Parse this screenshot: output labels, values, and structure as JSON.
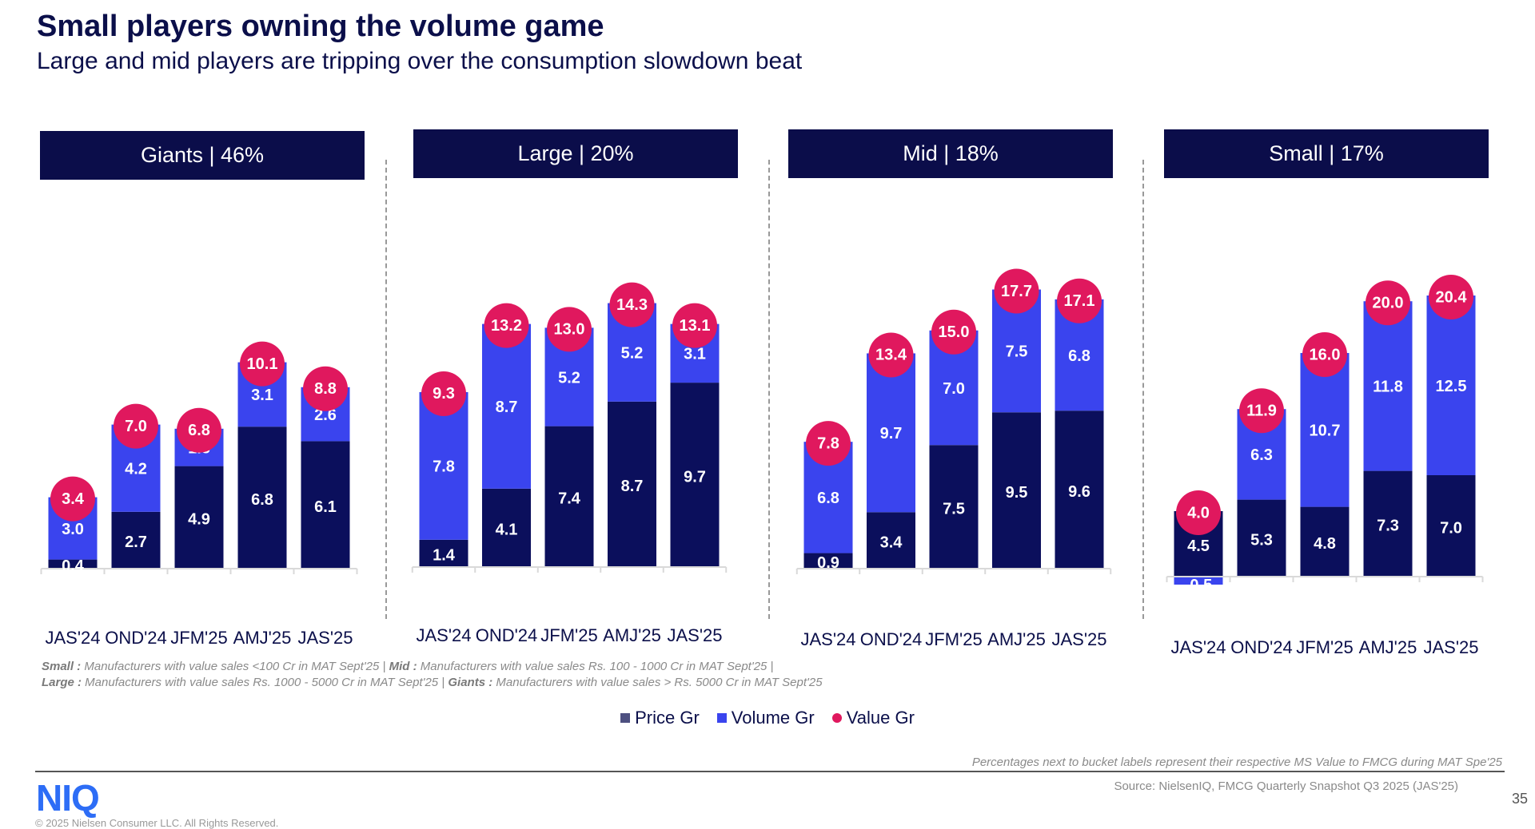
{
  "title": "Small players owning the volume game",
  "subtitle": "Large and mid players are tripping over the consumption slowdown beat",
  "colors": {
    "price": "#0b0f5c",
    "volume": "#3a44ee",
    "value": "#e0185e",
    "header": "#0b0d4a"
  },
  "chart_data": [
    {
      "type": "bar",
      "stacked": true,
      "title": "Giants | 46%",
      "categories": [
        "JAS'24",
        "OND'24",
        "JFM'25",
        "AMJ'25",
        "JAS'25"
      ],
      "series": [
        {
          "name": "Price Gr",
          "values": [
            0.4,
            2.7,
            4.9,
            6.8,
            6.1
          ]
        },
        {
          "name": "Volume Gr",
          "values": [
            3.0,
            4.2,
            1.8,
            3.1,
            2.6
          ]
        },
        {
          "name": "Value Gr",
          "values": [
            3.4,
            7.0,
            6.8,
            10.1,
            8.8
          ]
        }
      ]
    },
    {
      "type": "bar",
      "stacked": true,
      "title": "Large | 20%",
      "categories": [
        "JAS'24",
        "OND'24",
        "JFM'25",
        "AMJ'25",
        "JAS'25"
      ],
      "series": [
        {
          "name": "Price Gr",
          "values": [
            1.4,
            4.1,
            7.4,
            8.7,
            9.7
          ]
        },
        {
          "name": "Volume Gr",
          "values": [
            7.8,
            8.7,
            5.2,
            5.2,
            3.1
          ]
        },
        {
          "name": "Value Gr",
          "values": [
            9.3,
            13.2,
            13.0,
            14.3,
            13.1
          ]
        }
      ]
    },
    {
      "type": "bar",
      "stacked": true,
      "title": "Mid | 18%",
      "categories": [
        "JAS'24",
        "OND'24",
        "JFM'25",
        "AMJ'25",
        "JAS'25"
      ],
      "series": [
        {
          "name": "Price Gr",
          "values": [
            0.9,
            3.4,
            7.5,
            9.5,
            9.6
          ]
        },
        {
          "name": "Volume Gr",
          "values": [
            6.8,
            9.7,
            7.0,
            7.5,
            6.8
          ]
        },
        {
          "name": "Value Gr",
          "values": [
            7.8,
            13.4,
            15.0,
            17.7,
            17.1
          ]
        }
      ]
    },
    {
      "type": "bar",
      "stacked": true,
      "title": "Small | 17%",
      "categories": [
        "JAS'24",
        "OND'24",
        "JFM'25",
        "AMJ'25",
        "JAS'25"
      ],
      "series": [
        {
          "name": "Price Gr",
          "values": [
            4.5,
            5.3,
            4.8,
            7.3,
            7.0
          ]
        },
        {
          "name": "Volume Gr",
          "values": [
            -0.5,
            6.3,
            10.7,
            11.8,
            12.5
          ]
        },
        {
          "name": "Value Gr",
          "values": [
            4.0,
            11.9,
            16.0,
            20.0,
            20.4
          ]
        }
      ]
    }
  ],
  "footnotes": {
    "line1": [
      {
        "bold": "Small :",
        "text": " Manufacturers with value sales <100 Cr in MAT Sept'25 | "
      },
      {
        "bold": "Mid :",
        "text": " Manufacturers with value sales Rs. 100 - 1000 Cr in MAT Sept'25 |"
      }
    ],
    "line2": [
      {
        "bold": "Large :",
        "text": " Manufacturers with value sales Rs. 1000 - 5000 Cr in MAT Sept'25 | "
      },
      {
        "bold": "Giants :",
        "text": " Manufacturers with value sales > Rs. 5000 Cr in MAT Sept'25"
      }
    ]
  },
  "legend": [
    "Price Gr",
    "Volume Gr",
    "Value Gr"
  ],
  "note": "Percentages next to bucket labels represent their respective MS Value to FMCG during MAT Spe'25",
  "source": "Source: NielsenIQ, FMCG Quarterly Snapshot Q3 2025 (JAS'25)",
  "page_number": "35",
  "logo": "NIQ",
  "copyright": "© 2025 Nielsen Consumer LLC. All Rights Reserved."
}
